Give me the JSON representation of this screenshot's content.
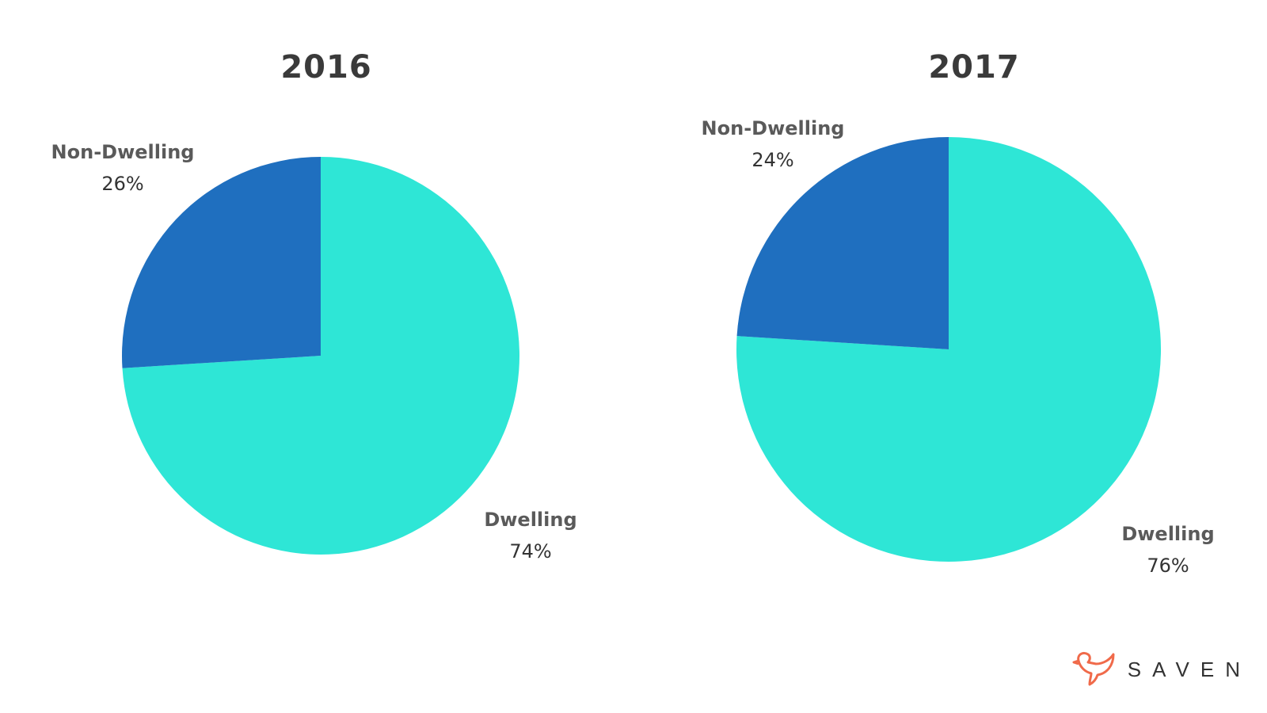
{
  "chart_data": [
    {
      "type": "pie",
      "title": "2016",
      "slices": [
        {
          "label": "Non-Dwelling",
          "value": 26,
          "value_label": "26%",
          "color": "#1f6fbf"
        },
        {
          "label": "Dwelling",
          "value": 74,
          "value_label": "74%",
          "color": "#2ee6d6"
        }
      ]
    },
    {
      "type": "pie",
      "title": "2017",
      "slices": [
        {
          "label": "Non-Dwelling",
          "value": 24,
          "value_label": "24%",
          "color": "#1f6fbf"
        },
        {
          "label": "Dwelling",
          "value": 76,
          "value_label": "76%",
          "color": "#2ee6d6"
        }
      ]
    }
  ],
  "brand": {
    "name": "SAVEN",
    "logo_icon": "bird-icon",
    "logo_color": "#f06a4a"
  }
}
